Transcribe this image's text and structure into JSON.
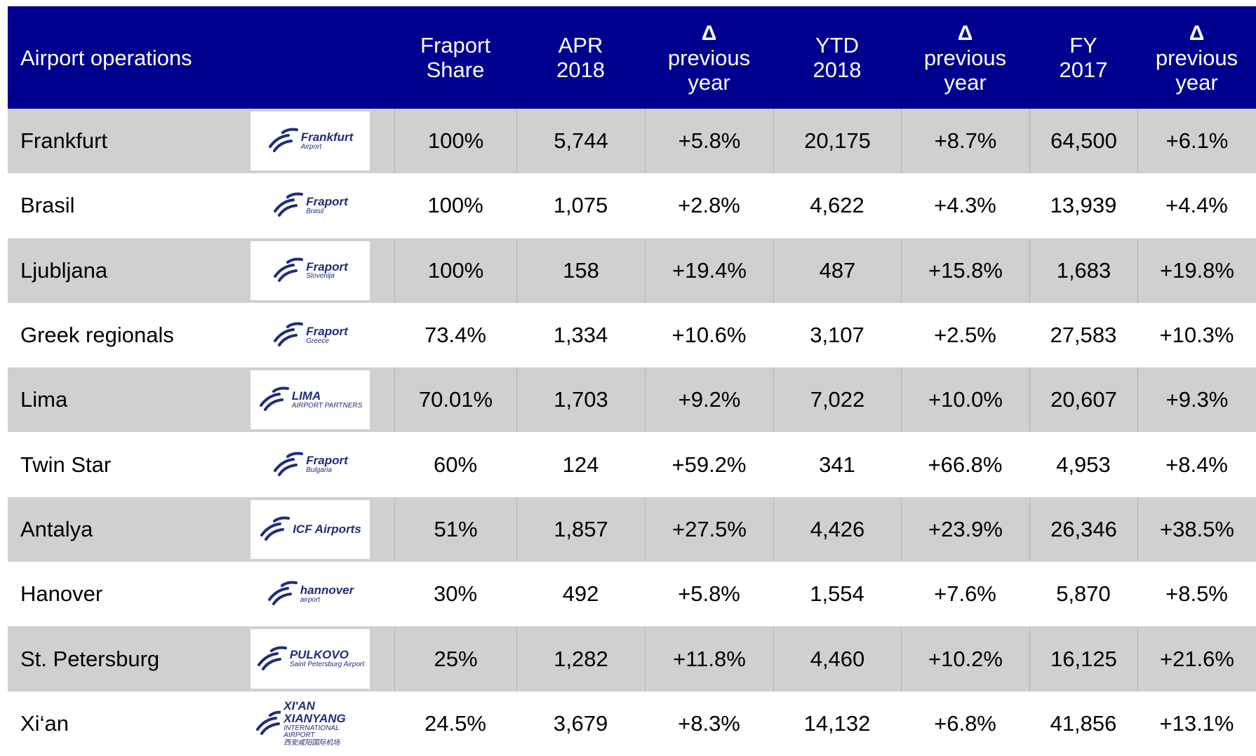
{
  "header": {
    "title": "Airport operations",
    "columns": [
      [
        "Fraport",
        "Share"
      ],
      [
        "APR",
        "2018"
      ],
      [
        "Δ",
        "previous",
        "year"
      ],
      [
        "YTD",
        "2018"
      ],
      [
        "Δ",
        "previous",
        "year"
      ],
      [
        "FY",
        "2017"
      ],
      [
        "Δ",
        "previous",
        "year"
      ]
    ]
  },
  "rows": [
    {
      "airport": "Frankfurt",
      "logo": [
        "Frankfurt",
        "Airport"
      ],
      "cells": [
        "100%",
        "5,744",
        "+5.8%",
        "20,175",
        "+8.7%",
        "64,500",
        "+6.1%"
      ]
    },
    {
      "airport": "Brasil",
      "logo": [
        "Fraport",
        "Brasil"
      ],
      "cells": [
        "100%",
        "1,075",
        "+2.8%",
        "4,622",
        "+4.3%",
        "13,939",
        "+4.4%"
      ]
    },
    {
      "airport": "Ljubljana",
      "logo": [
        "Fraport",
        "Slovenija"
      ],
      "cells": [
        "100%",
        "158",
        "+19.4%",
        "487",
        "+15.8%",
        "1,683",
        "+19.8%"
      ]
    },
    {
      "airport": "Greek regionals",
      "logo": [
        "Fraport",
        "Greece"
      ],
      "cells": [
        "73.4%",
        "1,334",
        "+10.6%",
        "3,107",
        "+2.5%",
        "27,583",
        "+10.3%"
      ]
    },
    {
      "airport": "Lima",
      "logo": [
        "LIMA",
        "AIRPORT PARTNERS"
      ],
      "cells": [
        "70.01%",
        "1,703",
        "+9.2%",
        "7,022",
        "+10.0%",
        "20,607",
        "+9.3%"
      ]
    },
    {
      "airport": "Twin Star",
      "logo": [
        "Fraport",
        "Bulgaria"
      ],
      "cells": [
        "60%",
        "124",
        "+59.2%",
        "341",
        "+66.8%",
        "4,953",
        "+8.4%"
      ]
    },
    {
      "airport": "Antalya",
      "logo": [
        "ICF Airports"
      ],
      "cells": [
        "51%",
        "1,857",
        "+27.5%",
        "4,426",
        "+23.9%",
        "26,346",
        "+38.5%"
      ]
    },
    {
      "airport": "Hanover",
      "logo": [
        "hannover",
        "airport"
      ],
      "cells": [
        "30%",
        "492",
        "+5.8%",
        "1,554",
        "+7.6%",
        "5,870",
        "+8.5%"
      ]
    },
    {
      "airport": "St. Petersburg",
      "logo": [
        "PULKOVO",
        "Saint Petersburg Airport"
      ],
      "cells": [
        "25%",
        "1,282",
        "+11.8%",
        "4,460",
        "+10.2%",
        "16,125",
        "+21.6%"
      ]
    },
    {
      "airport": "Xi‘an",
      "logo": [
        "XI'AN XIANYANG",
        "INTERNATIONAL AIRPORT",
        "西安咸阳国际机场"
      ],
      "cells": [
        "24.5%",
        "3,679",
        "+8.3%",
        "14,132",
        "+6.8%",
        "41,856",
        "+13.1%"
      ]
    }
  ]
}
